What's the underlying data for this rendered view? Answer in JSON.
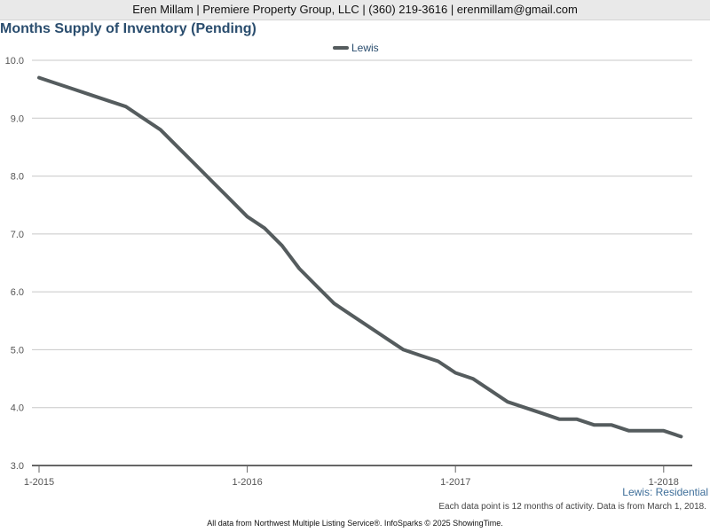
{
  "header": {
    "text": "Eren Millam | Premiere Property Group, LLC | (360) 219-3616 | erenmillam@gmail.com"
  },
  "chart_data": {
    "type": "line",
    "title": "Months Supply of Inventory (Pending)",
    "legend_position": "top-center",
    "grid": true,
    "ylim": [
      3.0,
      10.0
    ],
    "y_ticks": [
      3.0,
      4.0,
      5.0,
      6.0,
      7.0,
      8.0,
      9.0,
      10.0
    ],
    "y_tick_labels": [
      "3.0",
      "4.0",
      "5.0",
      "6.0",
      "7.0",
      "8.0",
      "9.0",
      "10.0"
    ],
    "xlim": [
      "2015-01",
      "2018-02"
    ],
    "x_ticks": [
      "2015-01",
      "2016-01",
      "2017-01",
      "2018-01"
    ],
    "x_tick_labels": [
      "1-2015",
      "1-2016",
      "1-2017",
      "1-2018"
    ],
    "x": [
      "2015-01",
      "2015-02",
      "2015-03",
      "2015-04",
      "2015-05",
      "2015-06",
      "2015-07",
      "2015-08",
      "2015-09",
      "2015-10",
      "2015-11",
      "2015-12",
      "2016-01",
      "2016-02",
      "2016-03",
      "2016-04",
      "2016-05",
      "2016-06",
      "2016-07",
      "2016-08",
      "2016-09",
      "2016-10",
      "2016-11",
      "2016-12",
      "2017-01",
      "2017-02",
      "2017-03",
      "2017-04",
      "2017-05",
      "2017-06",
      "2017-07",
      "2017-08",
      "2017-09",
      "2017-10",
      "2017-11",
      "2017-12",
      "2018-01",
      "2018-02"
    ],
    "series": [
      {
        "name": "Lewis",
        "color": "#555c5e",
        "values": [
          9.7,
          9.6,
          9.5,
          9.4,
          9.3,
          9.2,
          9.0,
          8.8,
          8.5,
          8.2,
          7.9,
          7.6,
          7.3,
          7.1,
          6.8,
          6.4,
          6.1,
          5.8,
          5.6,
          5.4,
          5.2,
          5.0,
          4.9,
          4.8,
          4.6,
          4.5,
          4.3,
          4.1,
          4.0,
          3.9,
          3.8,
          3.8,
          3.7,
          3.7,
          3.6,
          3.6,
          3.6,
          3.5
        ]
      }
    ],
    "region_label": "Lewis: Residential",
    "note": "Each data point is 12 months of activity. Data is from March 1, 2018.",
    "source": "All data from Northwest Multiple Listing Service®. InfoSparks © 2025 ShowingTime."
  }
}
